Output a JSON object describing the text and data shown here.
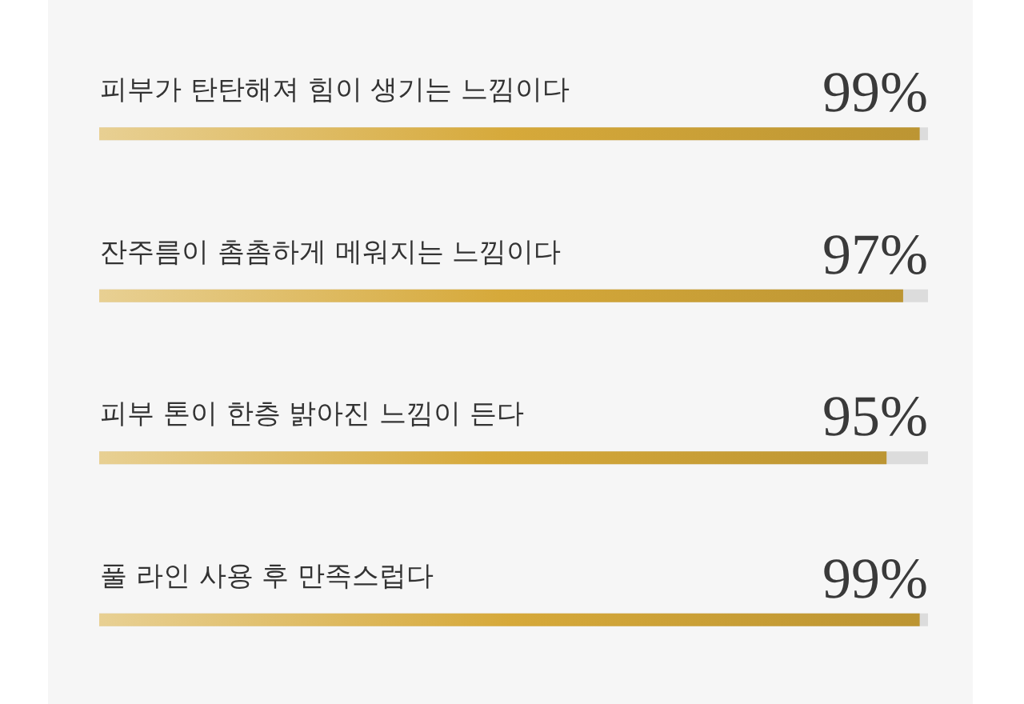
{
  "chart_data": {
    "type": "bar",
    "orientation": "horizontal",
    "categories": [
      "피부가 탄탄해져 힘이 생기는 느낌이다",
      "잔주름이 촘촘하게 메워지는 느낌이다",
      "피부 톤이 한층 밝아진 느낌이 든다",
      "풀 라인 사용 후 만족스럽다"
    ],
    "values": [
      99,
      97,
      95,
      99
    ],
    "value_labels": [
      "99%",
      "97%",
      "95%",
      "99%"
    ],
    "color": "#d6a93a",
    "xlim": [
      0,
      100
    ],
    "tick_labels": "y"
  }
}
